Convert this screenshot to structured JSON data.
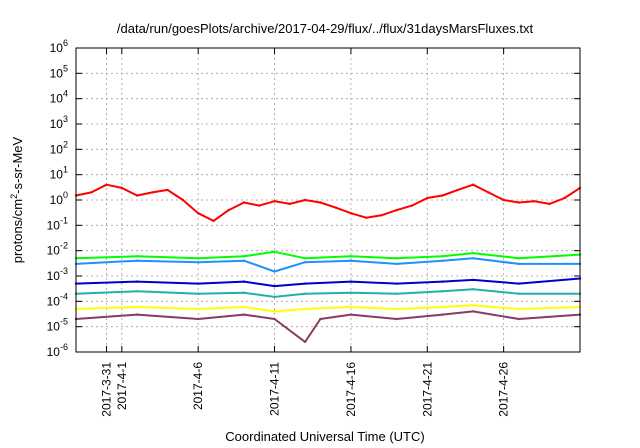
{
  "chart_data": {
    "type": "line",
    "title": "/data/run/goesPlots/archive/2017-04-29/flux/../flux/31daysMarsFluxes.txt",
    "xlabel": "Coordinated Universal Time (UTC)",
    "ylabel": {
      "prefix": "protons/cm",
      "sup": "2",
      "suffix": "-s-sr-MeV"
    },
    "yscale": "log",
    "ylim": [
      1e-06,
      1000000.0
    ],
    "xlim": [
      "2017-03-29",
      "2017-05-01"
    ],
    "grid": true,
    "y_ticks": [
      {
        "exp": -6,
        "value": 1e-06
      },
      {
        "exp": -5,
        "value": 1e-05
      },
      {
        "exp": -4,
        "value": 0.0001
      },
      {
        "exp": -3,
        "value": 0.001
      },
      {
        "exp": -2,
        "value": 0.01
      },
      {
        "exp": -1,
        "value": 0.1
      },
      {
        "exp": 0,
        "value": 1
      },
      {
        "exp": 1,
        "value": 10
      },
      {
        "exp": 2,
        "value": 100
      },
      {
        "exp": 3,
        "value": 1000
      },
      {
        "exp": 4,
        "value": 10000
      },
      {
        "exp": 5,
        "value": 100000
      },
      {
        "exp": 6,
        "value": 1000000
      }
    ],
    "x_ticks": [
      {
        "label": "2017-3-31",
        "date": "2017-03-31"
      },
      {
        "label": "2017-4-1",
        "date": "2017-04-01"
      },
      {
        "label": "2017-4-6",
        "date": "2017-04-06"
      },
      {
        "label": "2017-4-11",
        "date": "2017-04-11"
      },
      {
        "label": "2017-4-16",
        "date": "2017-04-16"
      },
      {
        "label": "2017-4-21",
        "date": "2017-04-21"
      },
      {
        "label": "2017-4-26",
        "date": "2017-04-26"
      }
    ],
    "series": [
      {
        "color": "#ff0000",
        "points": [
          [
            "2017-03-29",
            1.5
          ],
          [
            "2017-03-30",
            2.0
          ],
          [
            "2017-03-31",
            4.0
          ],
          [
            "2017-04-01",
            3.0
          ],
          [
            "2017-04-02",
            1.5
          ],
          [
            "2017-04-03",
            2.0
          ],
          [
            "2017-04-04",
            2.5
          ],
          [
            "2017-04-05",
            1.0
          ],
          [
            "2017-04-06",
            0.3
          ],
          [
            "2017-04-07",
            0.15
          ],
          [
            "2017-04-08",
            0.4
          ],
          [
            "2017-04-09",
            0.8
          ],
          [
            "2017-04-10",
            0.6
          ],
          [
            "2017-04-11",
            0.9
          ],
          [
            "2017-04-12",
            0.7
          ],
          [
            "2017-04-13",
            1.0
          ],
          [
            "2017-04-14",
            0.8
          ],
          [
            "2017-04-15",
            0.5
          ],
          [
            "2017-04-16",
            0.3
          ],
          [
            "2017-04-17",
            0.2
          ],
          [
            "2017-04-18",
            0.25
          ],
          [
            "2017-04-19",
            0.4
          ],
          [
            "2017-04-20",
            0.6
          ],
          [
            "2017-04-21",
            1.2
          ],
          [
            "2017-04-22",
            1.5
          ],
          [
            "2017-04-23",
            2.5
          ],
          [
            "2017-04-24",
            4.0
          ],
          [
            "2017-04-25",
            2.0
          ],
          [
            "2017-04-26",
            1.0
          ],
          [
            "2017-04-27",
            0.8
          ],
          [
            "2017-04-28",
            0.9
          ],
          [
            "2017-04-29",
            0.7
          ],
          [
            "2017-04-30",
            1.2
          ],
          [
            "2017-05-01",
            3.0
          ]
        ]
      },
      {
        "color": "#00ff00",
        "points": [
          [
            "2017-03-29",
            0.005
          ],
          [
            "2017-04-02",
            0.006
          ],
          [
            "2017-04-06",
            0.005
          ],
          [
            "2017-04-09",
            0.006
          ],
          [
            "2017-04-11",
            0.009
          ],
          [
            "2017-04-13",
            0.005
          ],
          [
            "2017-04-16",
            0.006
          ],
          [
            "2017-04-19",
            0.005
          ],
          [
            "2017-04-22",
            0.006
          ],
          [
            "2017-04-24",
            0.008
          ],
          [
            "2017-04-27",
            0.005
          ],
          [
            "2017-05-01",
            0.007
          ]
        ]
      },
      {
        "color": "#1e90ff",
        "points": [
          [
            "2017-03-29",
            0.003
          ],
          [
            "2017-04-02",
            0.004
          ],
          [
            "2017-04-06",
            0.0035
          ],
          [
            "2017-04-09",
            0.004
          ],
          [
            "2017-04-11",
            0.0015
          ],
          [
            "2017-04-13",
            0.0035
          ],
          [
            "2017-04-16",
            0.004
          ],
          [
            "2017-04-19",
            0.003
          ],
          [
            "2017-04-22",
            0.004
          ],
          [
            "2017-04-24",
            0.005
          ],
          [
            "2017-04-27",
            0.003
          ],
          [
            "2017-05-01",
            0.003
          ]
        ]
      },
      {
        "color": "#0000cd",
        "points": [
          [
            "2017-03-29",
            0.0005
          ],
          [
            "2017-04-02",
            0.0006
          ],
          [
            "2017-04-06",
            0.0005
          ],
          [
            "2017-04-09",
            0.0006
          ],
          [
            "2017-04-11",
            0.0004
          ],
          [
            "2017-04-13",
            0.0005
          ],
          [
            "2017-04-16",
            0.0006
          ],
          [
            "2017-04-19",
            0.0005
          ],
          [
            "2017-04-22",
            0.0006
          ],
          [
            "2017-04-24",
            0.0007
          ],
          [
            "2017-04-27",
            0.0005
          ],
          [
            "2017-05-01",
            0.0008
          ]
        ]
      },
      {
        "color": "#20b2aa",
        "points": [
          [
            "2017-03-29",
            0.0002
          ],
          [
            "2017-04-02",
            0.00025
          ],
          [
            "2017-04-06",
            0.0002
          ],
          [
            "2017-04-09",
            0.00022
          ],
          [
            "2017-04-11",
            0.00015
          ],
          [
            "2017-04-13",
            0.0002
          ],
          [
            "2017-04-16",
            0.00022
          ],
          [
            "2017-04-19",
            0.0002
          ],
          [
            "2017-04-22",
            0.00025
          ],
          [
            "2017-04-24",
            0.0003
          ],
          [
            "2017-04-27",
            0.0002
          ],
          [
            "2017-05-01",
            0.0002
          ]
        ]
      },
      {
        "color": "#ffff00",
        "points": [
          [
            "2017-03-29",
            5e-05
          ],
          [
            "2017-04-02",
            6e-05
          ],
          [
            "2017-04-06",
            5e-05
          ],
          [
            "2017-04-09",
            6e-05
          ],
          [
            "2017-04-11",
            4e-05
          ],
          [
            "2017-04-13",
            5e-05
          ],
          [
            "2017-04-16",
            6e-05
          ],
          [
            "2017-04-19",
            5e-05
          ],
          [
            "2017-04-22",
            6e-05
          ],
          [
            "2017-04-24",
            7e-05
          ],
          [
            "2017-04-27",
            5e-05
          ],
          [
            "2017-05-01",
            6e-05
          ]
        ]
      },
      {
        "color": "#8b3a62",
        "points": [
          [
            "2017-03-29",
            2e-05
          ],
          [
            "2017-04-02",
            3e-05
          ],
          [
            "2017-04-06",
            2e-05
          ],
          [
            "2017-04-09",
            3e-05
          ],
          [
            "2017-04-11",
            2e-05
          ],
          [
            "2017-04-13",
            2.5e-06
          ],
          [
            "2017-04-14",
            2e-05
          ],
          [
            "2017-04-16",
            3e-05
          ],
          [
            "2017-04-19",
            2e-05
          ],
          [
            "2017-04-22",
            3e-05
          ],
          [
            "2017-04-24",
            4e-05
          ],
          [
            "2017-04-27",
            2e-05
          ],
          [
            "2017-05-01",
            3e-05
          ]
        ]
      }
    ]
  }
}
